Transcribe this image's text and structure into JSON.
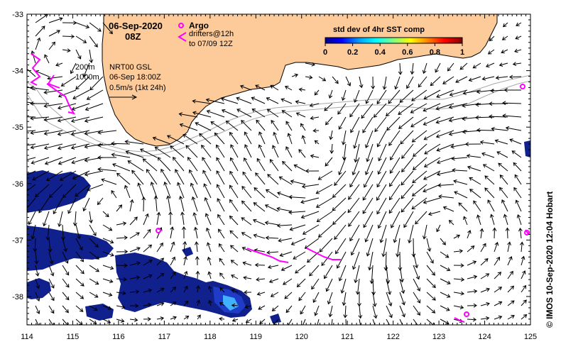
{
  "header": {
    "date": "06-Sep-2020",
    "time": "08Z"
  },
  "legend": {
    "argo_label": "Argo",
    "drifters_line1": "drifters@12h",
    "drifters_line2": "to 07/09 12Z",
    "argo_color": "#ff00ff",
    "drifter_color": "#ff00ff"
  },
  "info": {
    "contour1": "200m",
    "contour2": "1000m",
    "product": "NRT00 GSL",
    "valid": "06-Sep 18:00Z",
    "scale": "0.5m/s (1kt 24h)"
  },
  "colorbar": {
    "title": "std dev of 4hr SST comp",
    "ticks": [
      "0",
      "0.2",
      "0.4",
      "0.6",
      "0.8",
      "1"
    ],
    "stops": [
      "#00008f",
      "#0000ff",
      "#00a0ff",
      "#00ffff",
      "#80ff80",
      "#ffff00",
      "#ff8000",
      "#ff0000",
      "#800000"
    ]
  },
  "axes": {
    "x_ticks": [
      "114",
      "115",
      "116",
      "117",
      "118",
      "119",
      "120",
      "121",
      "122",
      "123",
      "124",
      "125"
    ],
    "y_ticks": [
      "-33",
      "-34",
      "-35",
      "-36",
      "-37",
      "-38"
    ]
  },
  "credit": "© IMOS 10-Sep-2020 12:04 Hobart",
  "colors": {
    "land": "#fdca9a",
    "sst_dark": "#10208c",
    "sst_mid": "#1e3cc8",
    "sst_light": "#40b0ff",
    "isobath": "#a8a8a8"
  }
}
